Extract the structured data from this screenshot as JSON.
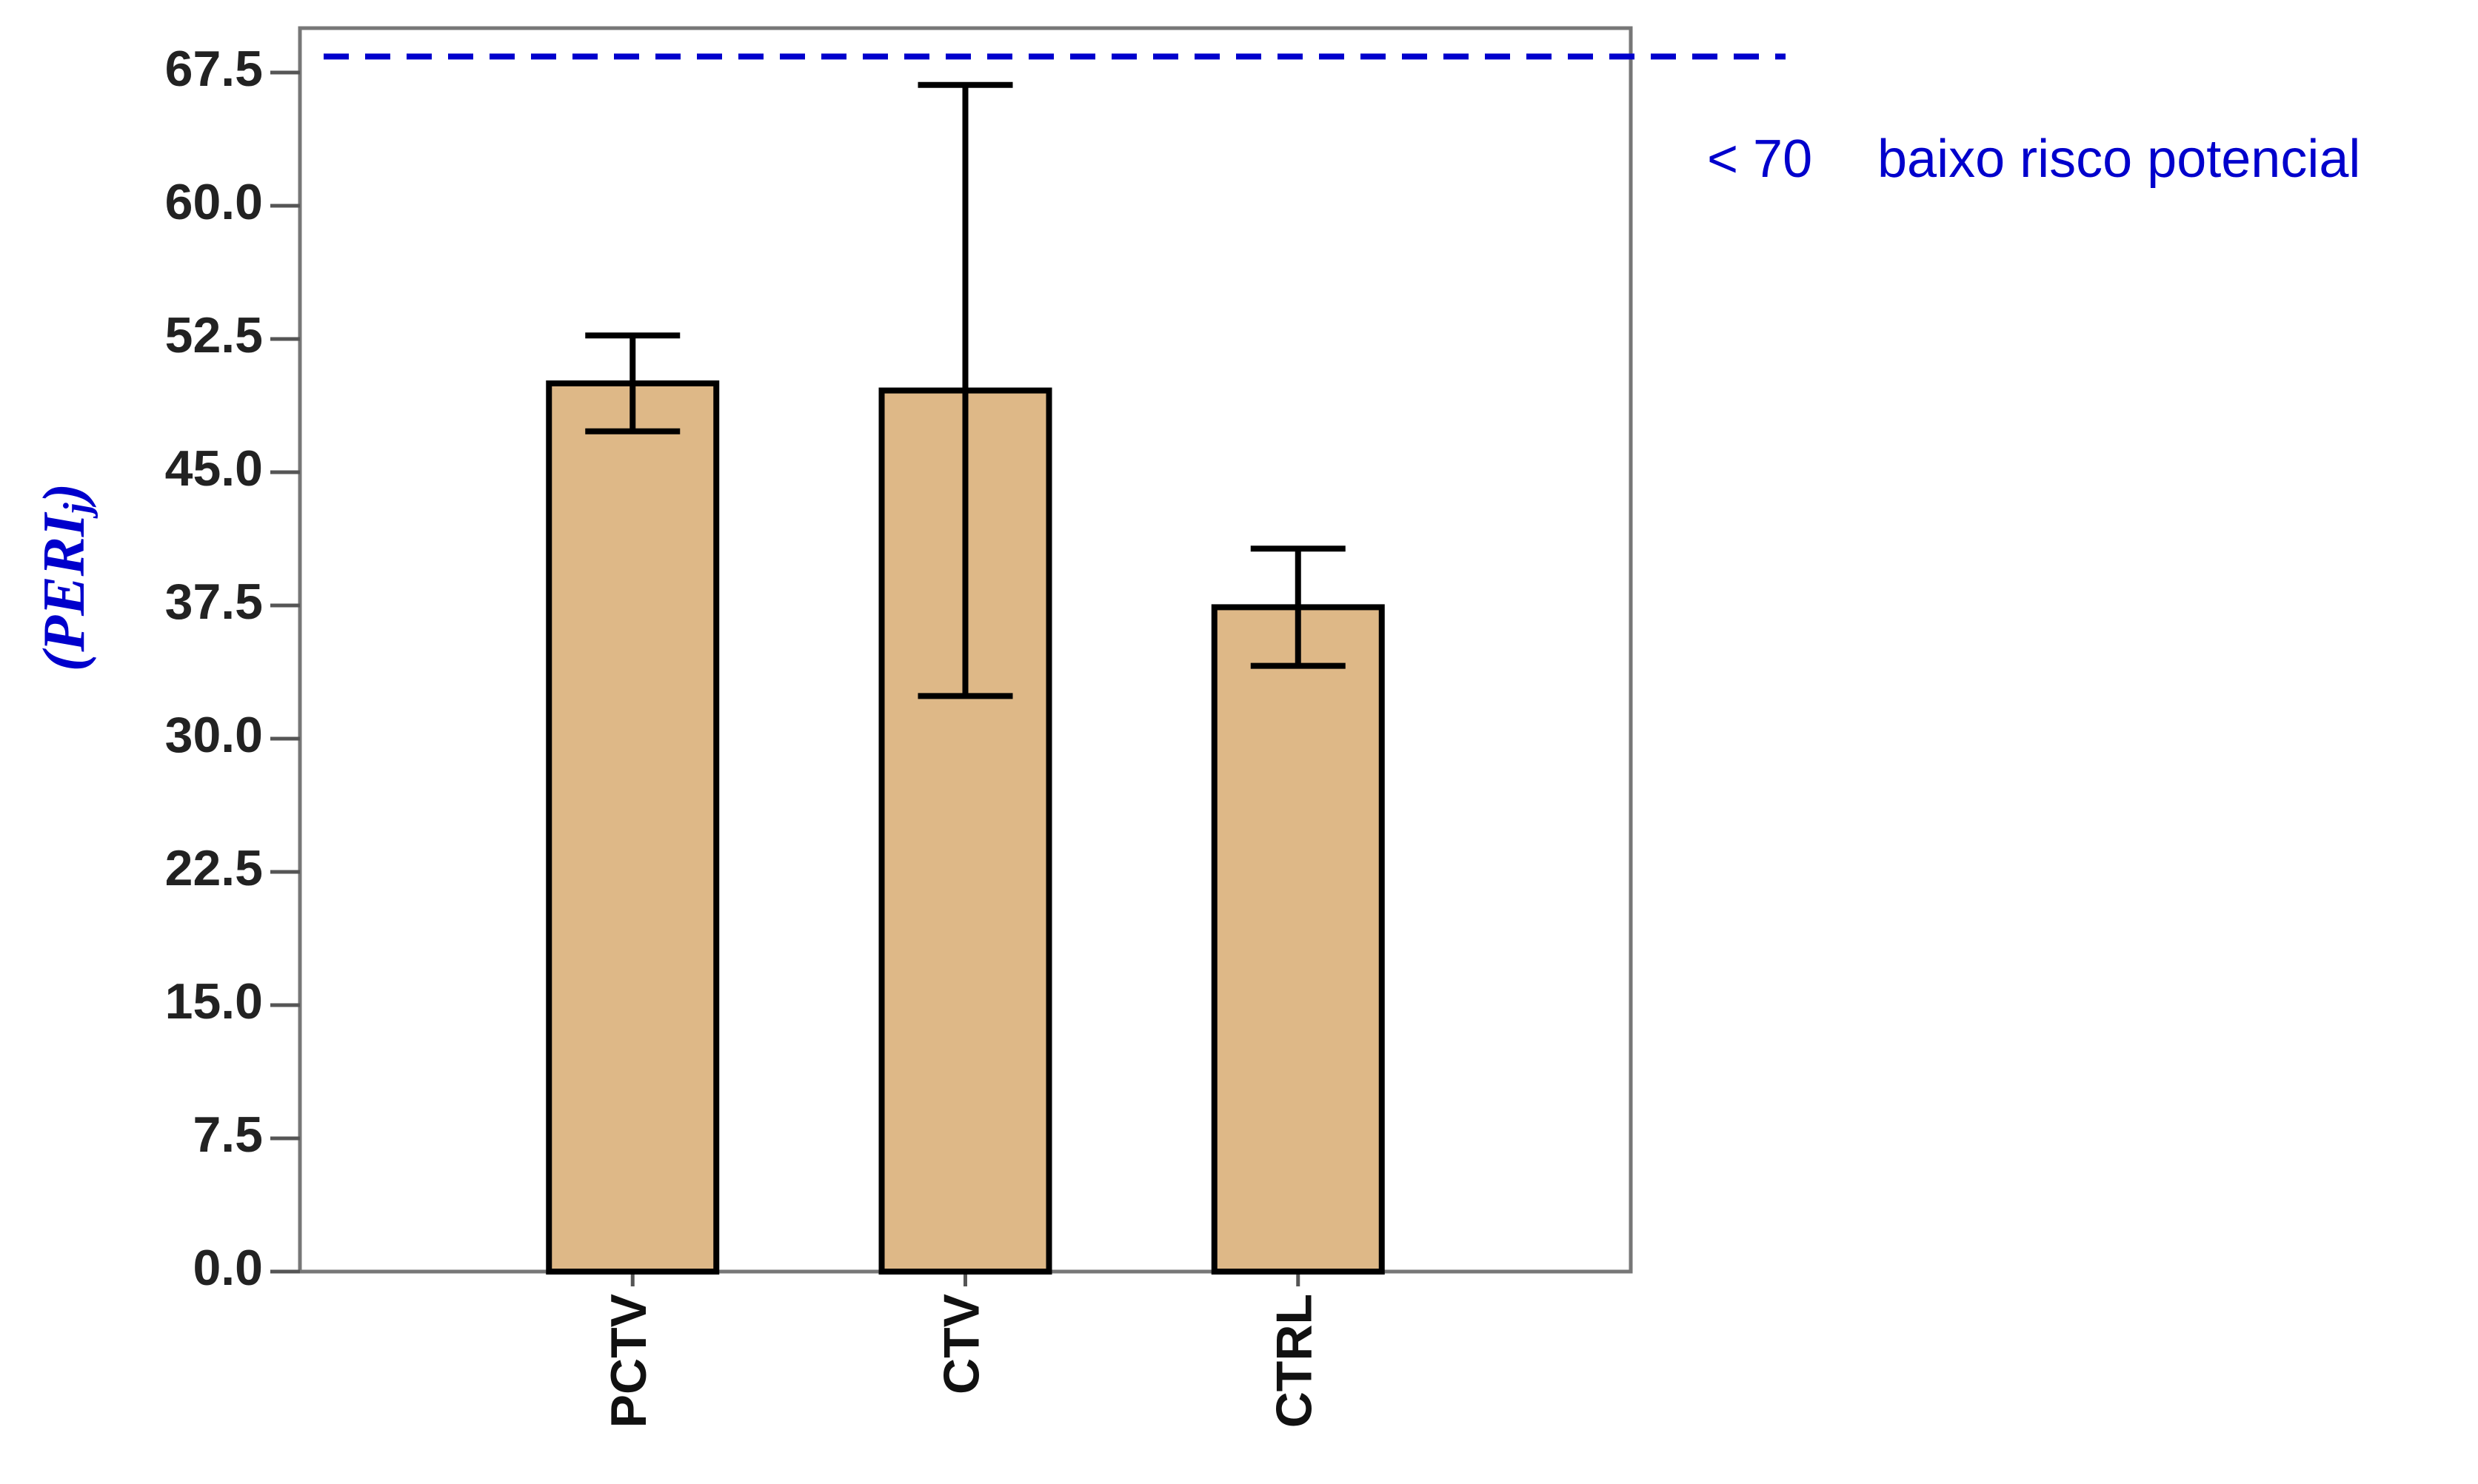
{
  "chart_data": {
    "type": "bar",
    "categories": [
      "PCTV",
      "CTV",
      "CTRL"
    ],
    "values": [
      50.0,
      49.6,
      37.4
    ],
    "errors": [
      2.7,
      17.2,
      3.3
    ],
    "color": "#deb887",
    "ylim": [
      0,
      70
    ],
    "yticks": [
      {
        "value": 0,
        "label": "0.0"
      },
      7.5,
      {
        "value": 15,
        "label": "15.0"
      },
      22.5,
      {
        "value": 30,
        "label": "30.0"
      },
      37.5,
      {
        "value": 45,
        "label": "45.0"
      },
      52.5,
      {
        "value": 60,
        "label": "60.0"
      },
      67.5
    ],
    "y_label": [
      "(PERI",
      "j",
      ")"
    ],
    "reference_line": 68.4,
    "reference_color": "#0000cc",
    "annotations": [
      "< 70",
      "baixo risco potencial"
    ]
  }
}
